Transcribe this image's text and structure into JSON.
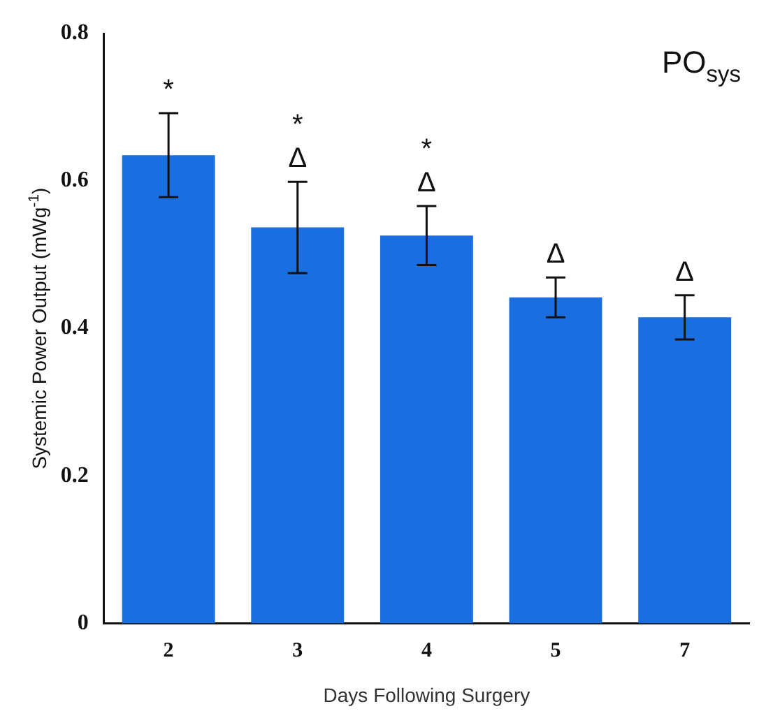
{
  "chart_data": {
    "type": "bar",
    "xlabel": "Days Following Surgery",
    "ylabel": "Systemic Power Output (mWg$^{-1}$)",
    "categories": [
      "2",
      "3",
      "4",
      "5",
      "7"
    ],
    "values": [
      0.635,
      0.537,
      0.526,
      0.442,
      0.415
    ],
    "errors": [
      0.057,
      0.062,
      0.04,
      0.027,
      0.03
    ],
    "color": "#1a6fe0",
    "ylim": [
      0,
      0.8
    ],
    "yticks": [
      0,
      0.2,
      0.4,
      0.6,
      0.8
    ],
    "grid": false,
    "legend": false,
    "annotations": [
      "PO$_{sys}$",
      {
        "text": "*",
        "x": "2",
        "y": 0.692
      },
      {
        "text": "Δ",
        "x": "3",
        "y": 0.599
      },
      {
        "text": "*",
        "x": "3",
        "y": 0.599
      },
      {
        "text": "Δ",
        "x": "4",
        "y": 0.566
      },
      {
        "text": "*",
        "x": "4",
        "y": 0.566
      },
      {
        "text": "Δ",
        "x": "5",
        "y": 0.469
      },
      {
        "text": "Δ",
        "x": "7",
        "y": 0.445
      }
    ]
  }
}
